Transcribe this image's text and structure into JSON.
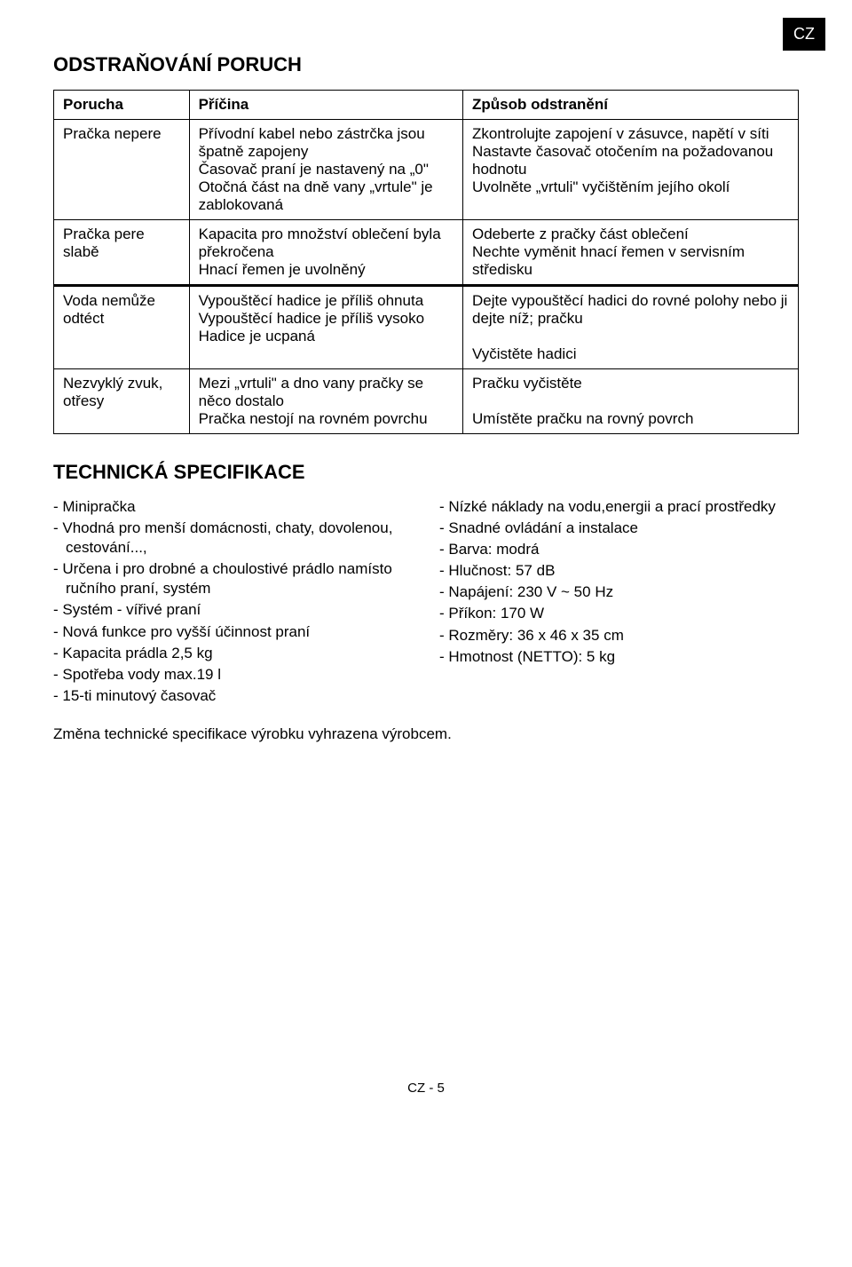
{
  "lang_tab": "CZ",
  "section1_title": "ODSTRAŇOVÁNÍ PORUCH",
  "table_headers": {
    "c1": "Porucha",
    "c2": "Příčina",
    "c3": "Způsob odstranění"
  },
  "table_rows": [
    {
      "c1": "Pračka nepere",
      "c2": "Přívodní kabel nebo zástrčka jsou špatně zapojeny\nČasovač praní je nastavený na „0\"\nOtočná část na dně vany „vrtule\" je zablokovaná",
      "c3": "Zkontrolujte zapojení v zásuvce, napětí v síti\nNastavte časovač otočením na požadovanou hodnotu\nUvolněte „vrtuli\" vyčištěním jejího okolí"
    },
    {
      "c1": "Pračka pere slabě",
      "c2": "Kapacita pro množství oblečení byla překročena\nHnací řemen je uvolněný",
      "c3": "Odeberte z pračky část oblečení\nNechte vyměnit hnací řemen v servisním středisku"
    },
    {
      "c1": "Voda nemůže odtéct",
      "c2": "Vypouštěcí hadice je příliš ohnuta\nVypouštěcí hadice je příliš vysoko\nHadice je ucpaná",
      "c3": "Dejte vypouštěcí hadici do rovné polohy nebo ji dejte níž; pračku\n\nVyčistěte hadici"
    },
    {
      "c1": "Nezvyklý zvuk, otřesy",
      "c2": "Mezi „vrtuli\" a dno vany pračky se něco dostalo\nPračka nestojí na rovném povrchu",
      "c3": "Pračku vyčistěte\n\nUmístěte pračku na rovný povrch"
    }
  ],
  "section2_title": "TECHNICKÁ SPECIFIKACE",
  "spec_left": [
    "Minipračka",
    "Vhodná pro menší domácnosti, chaty, dovolenou, cestování...,",
    "Určena i pro drobné a choulostivé prádlo namísto ručního praní, systém",
    "Systém - vířivé praní",
    "Nová funkce pro vyšší účinnost praní",
    "Kapacita prádla 2,5 kg",
    "Spotřeba vody max.19 l",
    "15-ti minutový časovač"
  ],
  "spec_right": [
    "Nízké náklady na vodu,energii a prací prostředky",
    "Snadné ovládání a instalace",
    "Barva: modrá",
    "Hlučnost: 57 dB",
    "Napájení: 230 V ~ 50 Hz",
    "Příkon: 170 W",
    "Rozměry: 36 x 46 x 35 cm",
    "Hmotnost (NETTO): 5 kg"
  ],
  "note": "Změna technické specifikace výrobku vyhrazena výrobcem.",
  "footer": "CZ - 5"
}
